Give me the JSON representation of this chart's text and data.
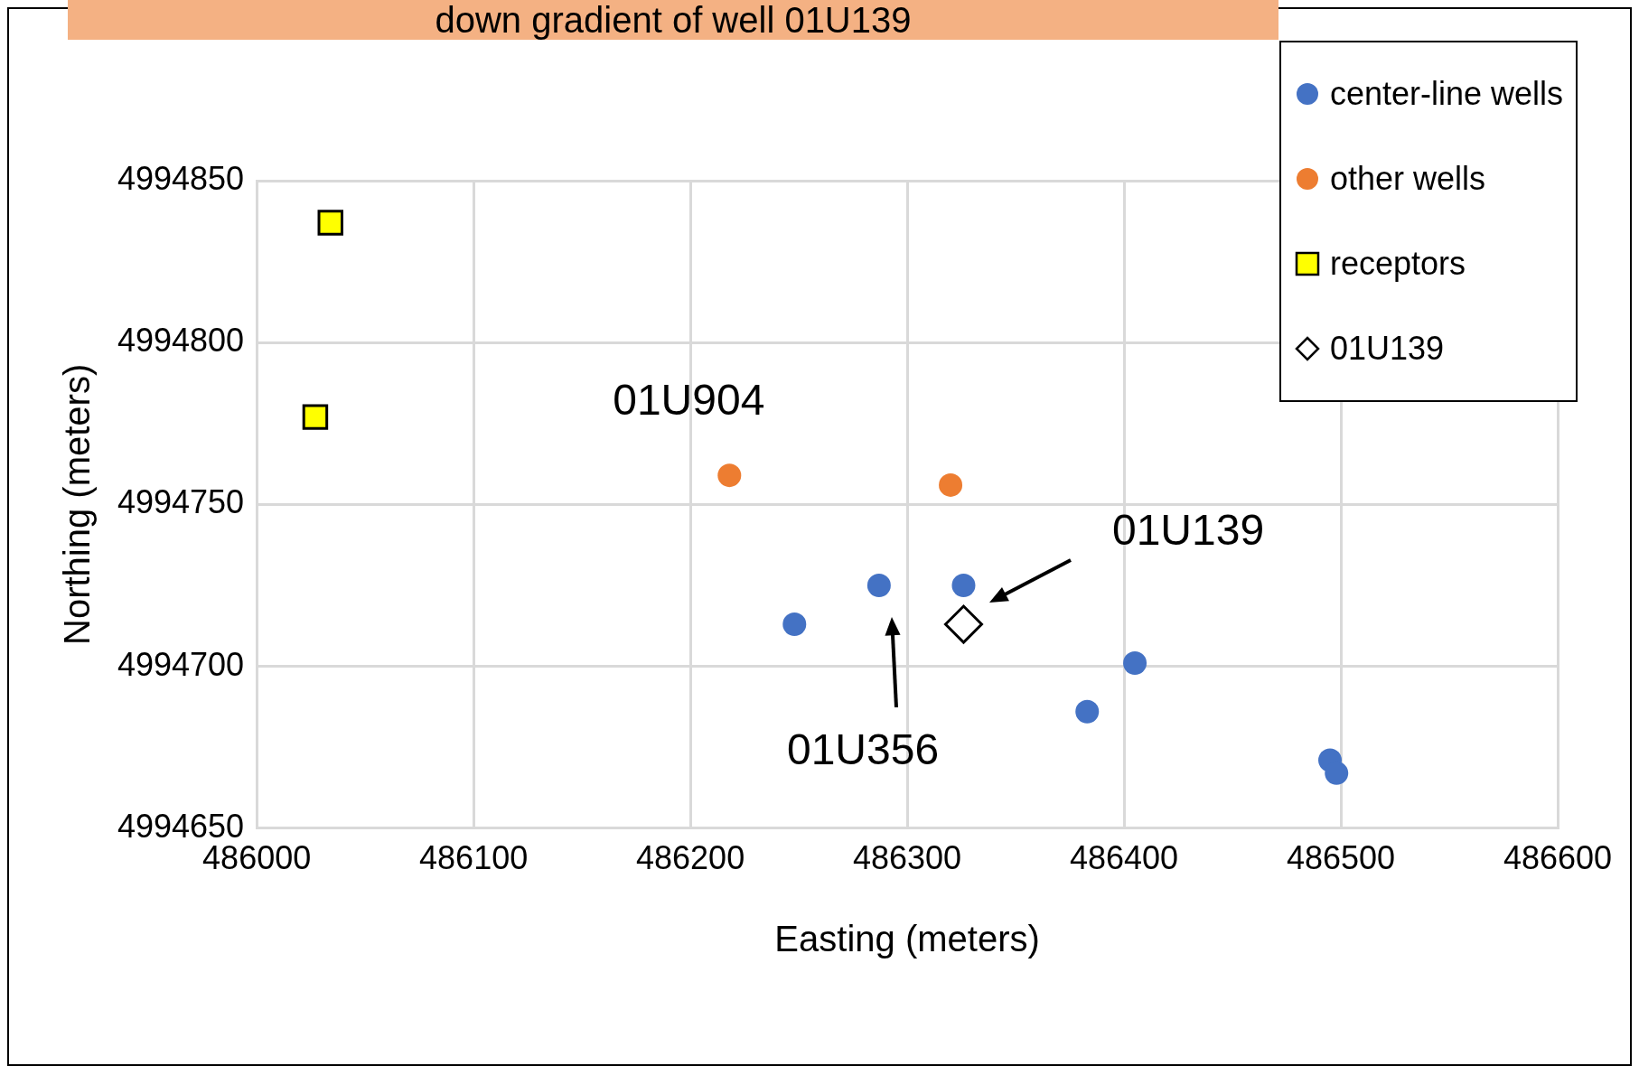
{
  "chart_data": {
    "type": "scatter",
    "title": "down gradient of well 01U139",
    "xlabel": "Easting (meters)",
    "ylabel": "Northing (meters)",
    "xlim": [
      486000,
      486600
    ],
    "xticks": [
      486000,
      486100,
      486200,
      486300,
      486400,
      486500,
      486600
    ],
    "ylim": [
      4994650,
      4994850
    ],
    "yticks": [
      4994650,
      4994700,
      4994750,
      4994800,
      4994850
    ],
    "grid": true,
    "legend": "top right",
    "series": [
      {
        "name": "center-line wells",
        "color": "#4472c4",
        "marker": "circle",
        "x": [
          486248,
          486287,
          486326,
          486405,
          486383,
          486495,
          486498
        ],
        "values": [
          4994713,
          4994725,
          4994725,
          4994701,
          4994686,
          4994671,
          4994667
        ]
      },
      {
        "name": "other wells",
        "color": "#ed7d31",
        "marker": "circle",
        "x": [
          486218,
          486320
        ],
        "values": [
          4994759,
          4994756
        ]
      },
      {
        "name": "receptors",
        "color": "#ffff00",
        "marker": "square",
        "x": [
          486034,
          486027
        ],
        "values": [
          4994837,
          4994777
        ]
      },
      {
        "name": "01U139",
        "color": "#000000",
        "marker": "diamond",
        "x": [
          486326
        ],
        "values": [
          4994713
        ]
      }
    ],
    "annotations": [
      {
        "text": "01U904",
        "x": 486218,
        "y": 4994759
      },
      "01U356",
      "01U139"
    ]
  }
}
